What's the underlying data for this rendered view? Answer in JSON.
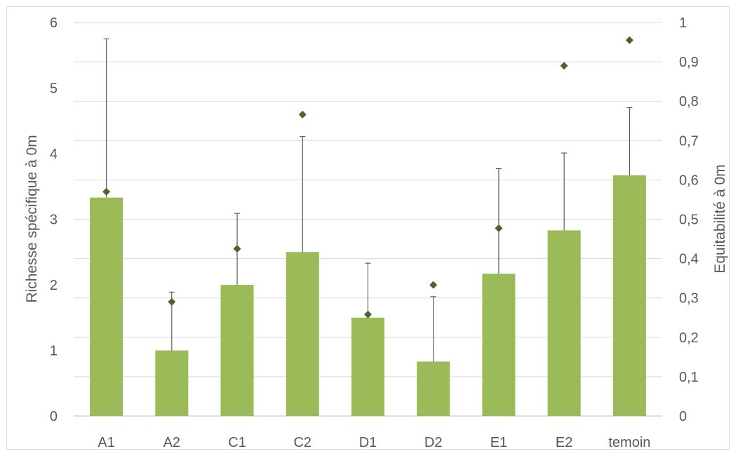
{
  "chart_data": {
    "type": "bar",
    "title": "",
    "categories": [
      "A1",
      "A2",
      "C1",
      "C2",
      "D1",
      "D2",
      "E1",
      "E2",
      "temoin"
    ],
    "series": [
      {
        "name": "",
        "kind": "bar",
        "axis": "left",
        "values": [
          3.33,
          1.0,
          2.0,
          2.5,
          1.5,
          0.83,
          2.17,
          2.83,
          3.67
        ],
        "error_upper": [
          5.75,
          1.89,
          3.09,
          4.26,
          2.33,
          1.82,
          3.77,
          4.01,
          4.7
        ],
        "color": "#9bbb59"
      },
      {
        "name": "",
        "kind": "scatter",
        "marker": "diamond",
        "axis": "right",
        "values": [
          0.57,
          0.29,
          0.425,
          0.766,
          0.258,
          0.333,
          0.477,
          0.89,
          0.955
        ],
        "color": "#4f6228"
      }
    ],
    "ylabel": "Richesse spécifique à 0m",
    "ylim": [
      0,
      6
    ],
    "yticks": [
      "0",
      "1",
      "2",
      "3",
      "4",
      "5",
      "6"
    ],
    "y2label": "Equitabilité à 0m",
    "y2lim": [
      0,
      1
    ],
    "y2ticks": [
      "0",
      "0,1",
      "0,2",
      "0,3",
      "0,4",
      "0,5",
      "0,6",
      "0,7",
      "0,8",
      "0,9",
      "1"
    ],
    "grid": true,
    "legend": "none"
  }
}
